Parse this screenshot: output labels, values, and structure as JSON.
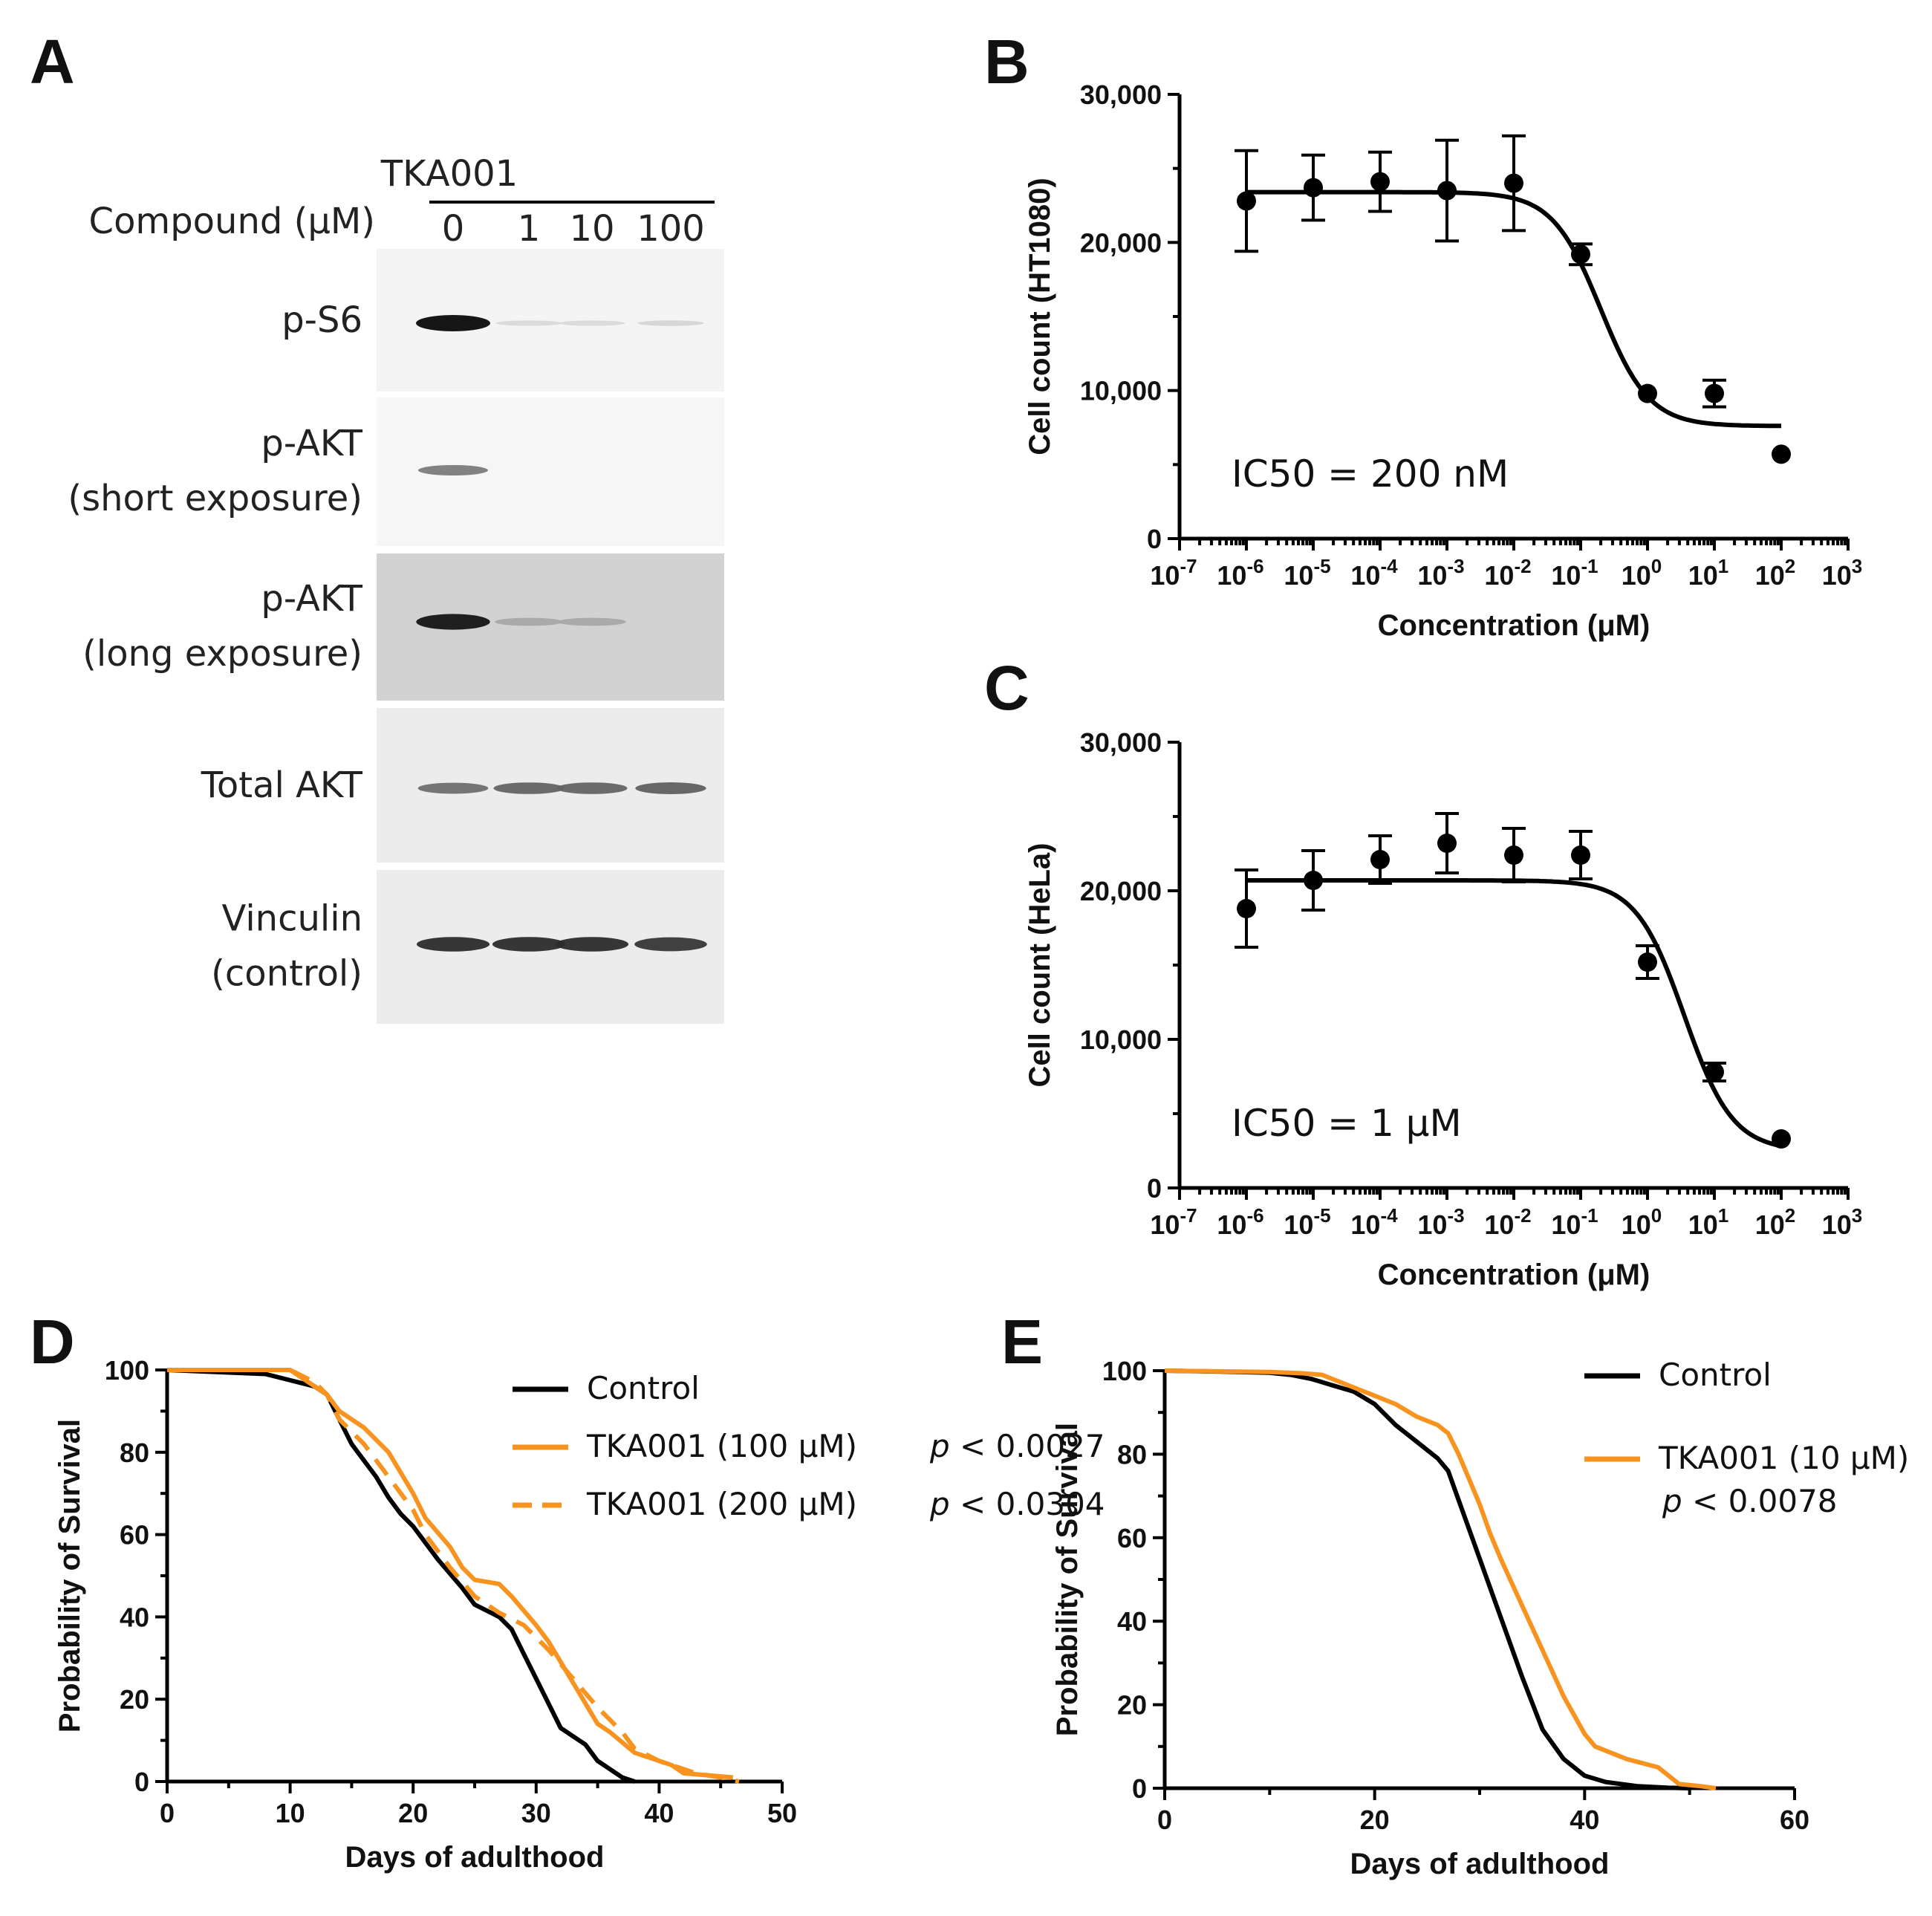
{
  "panel_labels": [
    "A",
    "B",
    "C",
    "D",
    "E"
  ],
  "colors": {
    "black": "#000000",
    "orange": "#f7931e"
  },
  "blot": {
    "compound_label": "Compound (μM)",
    "header": "TKA001",
    "lanes": [
      "0",
      "1",
      "10",
      "100"
    ],
    "bands": [
      {
        "label_lines": [
          "p-S6"
        ],
        "intensities": [
          1.0,
          0.08,
          0.08,
          0.1
        ],
        "background": "#f4f4f4"
      },
      {
        "label_lines": [
          "p-AKT",
          "(short exposure)"
        ],
        "intensities": [
          0.5,
          0.0,
          0.0,
          0.0
        ],
        "background": "#f6f6f6"
      },
      {
        "label_lines": [
          "p-AKT",
          "(long exposure)"
        ],
        "intensities": [
          0.95,
          0.3,
          0.3,
          0.0
        ],
        "background": "#d2d2d2"
      },
      {
        "label_lines": [
          "Total AKT"
        ],
        "intensities": [
          0.55,
          0.6,
          0.6,
          0.62
        ],
        "background": "#ececec"
      },
      {
        "label_lines": [
          "Vinculin",
          "(control)"
        ],
        "intensities": [
          0.85,
          0.85,
          0.85,
          0.8
        ],
        "background": "#ececec"
      }
    ]
  },
  "chart_data": [
    {
      "id": "B",
      "type": "scatter",
      "title": "",
      "xlabel": "Concentration (μM)",
      "ylabel": "Cell count (HT1080)",
      "xscale": "log10",
      "xlim_exp": [
        -7,
        3
      ],
      "ylim": [
        0,
        30000
      ],
      "yticks": [
        0,
        10000,
        20000,
        30000
      ],
      "ytick_labels": [
        "0",
        "10,000",
        "20,000",
        "30,000"
      ],
      "xtick_exps": [
        -7,
        -6,
        -5,
        -4,
        -3,
        -2,
        -1,
        0,
        1,
        2,
        3
      ],
      "annotation": "IC50 = 200 nM",
      "points": [
        {
          "x_exp": -6,
          "y": 22800,
          "err": 3400
        },
        {
          "x_exp": -5,
          "y": 23700,
          "err": 2200
        },
        {
          "x_exp": -4,
          "y": 24100,
          "err": 2000
        },
        {
          "x_exp": -3,
          "y": 23500,
          "err": 3400
        },
        {
          "x_exp": -2,
          "y": 24000,
          "err": 3200
        },
        {
          "x_exp": -1,
          "y": 19200,
          "err": 700
        },
        {
          "x_exp": 0,
          "y": 9800,
          "err": 0
        },
        {
          "x_exp": 1,
          "y": 9800,
          "err": 900
        },
        {
          "x_exp": 2,
          "y": 5700,
          "err": 0
        }
      ],
      "fit": {
        "top": 23400,
        "bottom": 7600,
        "log_ic50": -0.7,
        "hill": 1.2
      }
    },
    {
      "id": "C",
      "type": "scatter",
      "title": "",
      "xlabel": "Concentration (μM)",
      "ylabel": "Cell count (HeLa)",
      "xscale": "log10",
      "xlim_exp": [
        -7,
        3
      ],
      "ylim": [
        0,
        30000
      ],
      "yticks": [
        0,
        10000,
        20000,
        30000
      ],
      "ytick_labels": [
        "0",
        "10,000",
        "20,000",
        "30,000"
      ],
      "xtick_exps": [
        -7,
        -6,
        -5,
        -4,
        -3,
        -2,
        -1,
        0,
        1,
        2,
        3
      ],
      "annotation": "IC50 = 1 μM",
      "points": [
        {
          "x_exp": -6,
          "y": 18800,
          "err": 2600
        },
        {
          "x_exp": -5,
          "y": 20700,
          "err": 2000
        },
        {
          "x_exp": -4,
          "y": 22100,
          "err": 1600
        },
        {
          "x_exp": -3,
          "y": 23200,
          "err": 2000
        },
        {
          "x_exp": -2,
          "y": 22400,
          "err": 1800
        },
        {
          "x_exp": -1,
          "y": 22400,
          "err": 1600
        },
        {
          "x_exp": 0,
          "y": 15200,
          "err": 1100
        },
        {
          "x_exp": 1,
          "y": 7800,
          "err": 600
        },
        {
          "x_exp": 2,
          "y": 3300,
          "err": 0
        }
      ],
      "fit": {
        "top": 20700,
        "bottom": 2500,
        "log_ic50": 0.55,
        "hill": 1.2
      }
    },
    {
      "id": "D",
      "type": "line",
      "title": "",
      "xlabel": "Days of adulthood",
      "ylabel": "Probability of Survival",
      "xlim": [
        0,
        50
      ],
      "ylim": [
        0,
        100
      ],
      "xticks": [
        0,
        10,
        20,
        30,
        40,
        50
      ],
      "yticks": [
        0,
        20,
        40,
        60,
        80,
        100
      ],
      "legend": "right",
      "series": [
        {
          "name": "Control",
          "p": "",
          "color": "#000000",
          "dash": false,
          "x": [
            0,
            8,
            12,
            13,
            14,
            15,
            17,
            18,
            19,
            20,
            21,
            22,
            24,
            25,
            27,
            28,
            29,
            30,
            32,
            33,
            34,
            35,
            36,
            37,
            38
          ],
          "y": [
            100,
            99,
            96,
            94,
            88,
            82,
            74,
            69,
            65,
            62,
            58,
            54,
            47,
            43,
            40,
            37,
            31,
            25,
            13,
            11,
            9,
            5,
            3,
            1,
            0
          ]
        },
        {
          "name": "TKA001 (100 μM)",
          "p": "< 0.0027",
          "color": "#f7931e",
          "dash": false,
          "x": [
            0,
            10,
            11,
            13,
            14,
            16,
            18,
            20,
            21,
            23,
            24,
            25,
            27,
            28,
            30,
            31,
            33,
            35,
            36,
            38,
            41,
            42,
            46
          ],
          "y": [
            100,
            100,
            98,
            94,
            90,
            86,
            80,
            70,
            64,
            57,
            52,
            49,
            48,
            45,
            38,
            34,
            24,
            14,
            12,
            7,
            4,
            2,
            1
          ]
        },
        {
          "name": "TKA001 (200 μM)",
          "p": "< 0.0304",
          "color": "#f7931e",
          "dash": true,
          "x": [
            0,
            10,
            12,
            13,
            14,
            16,
            18,
            20,
            21,
            23,
            25,
            27,
            29,
            31,
            33,
            35,
            37,
            38,
            40,
            42,
            43,
            45,
            46.5
          ],
          "y": [
            100,
            100,
            97,
            94,
            88,
            82,
            74,
            66,
            60,
            52,
            45,
            41,
            38,
            32,
            25,
            18,
            12,
            8,
            5,
            3,
            2,
            1,
            0
          ]
        }
      ]
    },
    {
      "id": "E",
      "type": "line",
      "title": "",
      "xlabel": "Days of adulthood",
      "ylabel": "Probability of Survival",
      "xlim": [
        0,
        60
      ],
      "ylim": [
        0,
        100
      ],
      "xticks": [
        0,
        20,
        40,
        60
      ],
      "yticks": [
        0,
        20,
        40,
        60,
        80,
        100
      ],
      "legend": "right",
      "series": [
        {
          "name": "Control",
          "p": "",
          "color": "#000000",
          "dash": false,
          "x": [
            0,
            5,
            10,
            12,
            14,
            16,
            18,
            20,
            22,
            24,
            26,
            27,
            28,
            29,
            30,
            31,
            32,
            34,
            36,
            38,
            40,
            42,
            45,
            48,
            50
          ],
          "y": [
            100,
            99.8,
            99.5,
            99,
            98,
            96.5,
            95,
            92,
            87,
            83,
            79,
            76,
            69,
            62,
            55,
            48,
            41,
            27,
            14,
            7,
            3,
            1.5,
            0.5,
            0.1,
            0
          ]
        },
        {
          "name": "TKA001 (10 μM)",
          "p": "< 0.0078",
          "color": "#f7931e",
          "dash": false,
          "x": [
            0,
            10,
            13,
            15,
            18,
            20,
            22,
            24,
            26,
            27,
            28,
            29,
            30,
            31,
            32,
            34,
            36,
            38,
            40,
            41,
            42,
            44,
            47,
            49,
            51,
            52.5
          ],
          "y": [
            100,
            99.7,
            99.4,
            99,
            96,
            94,
            92,
            89,
            87,
            85,
            80,
            74,
            68,
            61,
            55,
            44,
            33,
            22,
            13,
            10,
            9,
            7,
            5,
            1,
            0.5,
            0
          ]
        }
      ]
    }
  ]
}
